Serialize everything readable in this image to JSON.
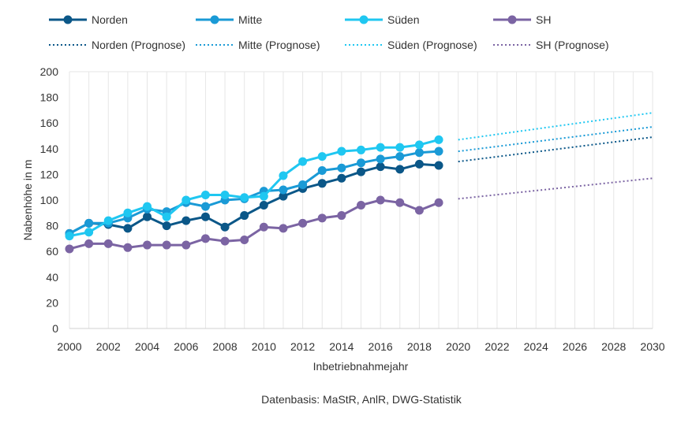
{
  "chart_data": {
    "type": "line",
    "xlabel": "Inbetriebnahmejahr",
    "ylabel": "Nabenhöhe in m",
    "xlim": [
      2000,
      2030
    ],
    "ylim": [
      0,
      200
    ],
    "x_ticks": [
      2000,
      2002,
      2004,
      2006,
      2008,
      2010,
      2012,
      2014,
      2016,
      2018,
      2020,
      2022,
      2024,
      2026,
      2028,
      2030
    ],
    "y_ticks": [
      0,
      20,
      40,
      60,
      80,
      100,
      120,
      140,
      160,
      180,
      200
    ],
    "grid": "vertical-yearly",
    "legend_position": "top",
    "source": "Datenbasis: MaStR, AnlR, DWG-Statistik",
    "series": [
      {
        "name": "Norden",
        "color": "#0b5788",
        "x": [
          2000,
          2001,
          2002,
          2003,
          2004,
          2005,
          2006,
          2007,
          2008,
          2009,
          2010,
          2011,
          2012,
          2013,
          2014,
          2015,
          2016,
          2017,
          2018,
          2019
        ],
        "values": [
          74,
          82,
          81,
          78,
          87,
          80,
          84,
          87,
          79,
          88,
          96,
          103,
          109,
          113,
          117,
          122,
          126,
          124,
          128,
          127
        ]
      },
      {
        "name": "Mitte",
        "color": "#1a9ad6",
        "x": [
          2000,
          2001,
          2002,
          2003,
          2004,
          2005,
          2006,
          2007,
          2008,
          2009,
          2010,
          2011,
          2012,
          2013,
          2014,
          2015,
          2016,
          2017,
          2018,
          2019
        ],
        "values": [
          74,
          82,
          82,
          86,
          93,
          91,
          98,
          95,
          100,
          101,
          107,
          108,
          112,
          123,
          125,
          129,
          132,
          134,
          137,
          138
        ]
      },
      {
        "name": "Süden",
        "color": "#1fc7f1",
        "x": [
          2000,
          2001,
          2002,
          2003,
          2004,
          2005,
          2006,
          2007,
          2008,
          2009,
          2010,
          2011,
          2012,
          2013,
          2014,
          2015,
          2016,
          2017,
          2018,
          2019
        ],
        "values": [
          72,
          75,
          84,
          90,
          95,
          87,
          100,
          104,
          104,
          102,
          103,
          119,
          130,
          134,
          138,
          139,
          141,
          141,
          143,
          147
        ]
      },
      {
        "name": "SH",
        "color": "#7b64a3",
        "x": [
          2000,
          2001,
          2002,
          2003,
          2004,
          2005,
          2006,
          2007,
          2008,
          2009,
          2010,
          2011,
          2012,
          2013,
          2014,
          2015,
          2016,
          2017,
          2018,
          2019
        ],
        "values": [
          62,
          66,
          66,
          63,
          65,
          65,
          65,
          70,
          68,
          69,
          79,
          78,
          82,
          86,
          88,
          96,
          100,
          98,
          92,
          98
        ]
      },
      {
        "name": "Norden (Prognose)",
        "color": "#0b5788",
        "dashed": true,
        "x": [
          2020,
          2030
        ],
        "values": [
          130,
          149
        ]
      },
      {
        "name": "Mitte (Prognose)",
        "color": "#1a9ad6",
        "dashed": true,
        "x": [
          2020,
          2030
        ],
        "values": [
          138,
          157
        ]
      },
      {
        "name": "Süden (Prognose)",
        "color": "#1fc7f1",
        "dashed": true,
        "x": [
          2020,
          2030
        ],
        "values": [
          147,
          168
        ]
      },
      {
        "name": "SH (Prognose)",
        "color": "#7b64a3",
        "dashed": true,
        "x": [
          2020,
          2030
        ],
        "values": [
          101,
          117
        ]
      }
    ]
  }
}
